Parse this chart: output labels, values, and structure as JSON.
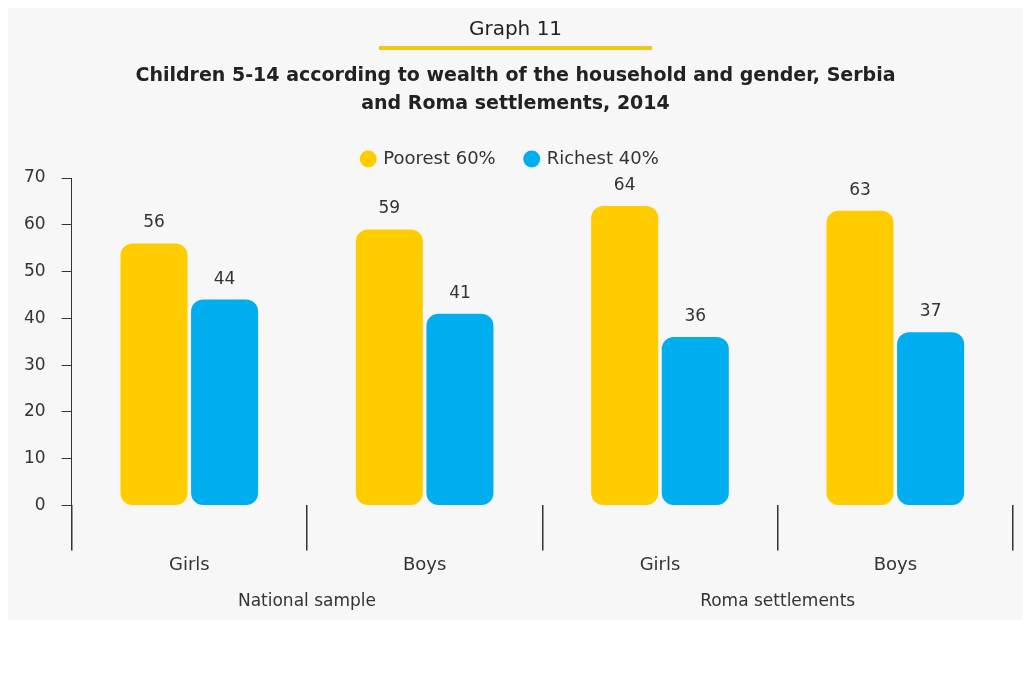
{
  "chart_data": {
    "type": "bar",
    "title": "Graph 11",
    "subtitle": "Children 5-14 according to wealth of the household and gender, Serbia and Roma settlements, 2014",
    "categories": [
      "Girls",
      "Boys",
      "Girls",
      "Boys"
    ],
    "series": [
      {
        "name": "Poorest 60%",
        "color": "#ffcc00",
        "values": [
          56,
          59,
          64,
          63
        ]
      },
      {
        "name": "Richest 40%",
        "color": "#00aeef",
        "values": [
          44,
          41,
          36,
          37
        ]
      }
    ],
    "ylim": [
      0,
      70
    ],
    "yticks": [
      0,
      10,
      20,
      30,
      40,
      50,
      60,
      70
    ],
    "grid": false,
    "legend": "top",
    "data_labels": true,
    "annotations": [
      "National sample",
      "Roma settlements"
    ]
  }
}
